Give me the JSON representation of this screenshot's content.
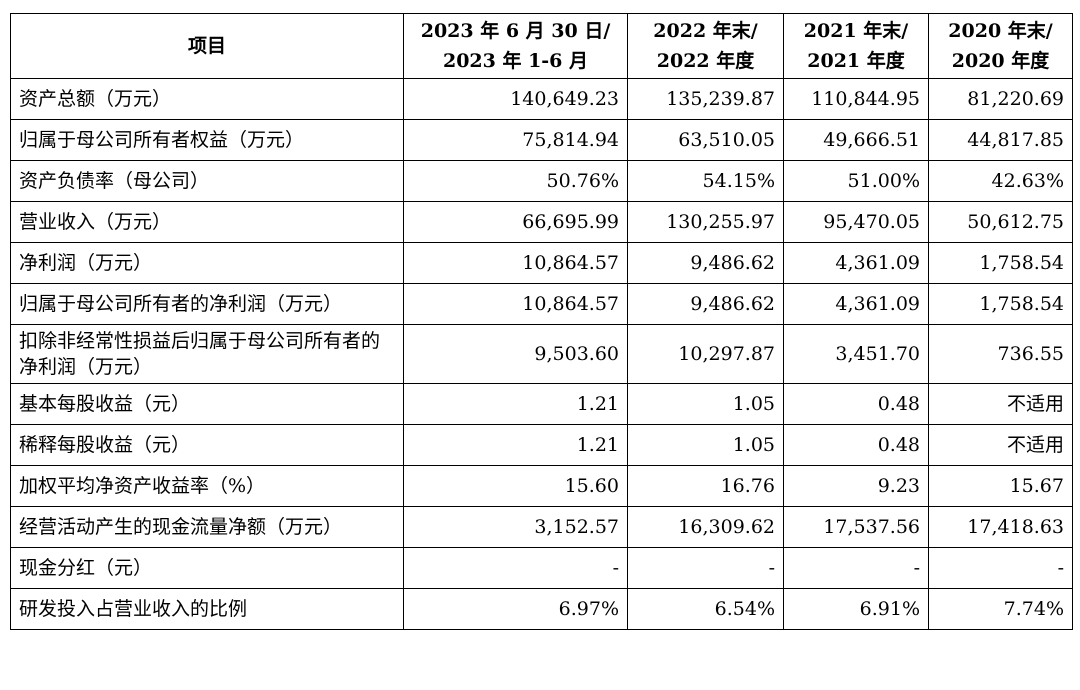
{
  "table": {
    "headers": [
      {
        "lines": [
          "项目"
        ]
      },
      {
        "lines": [
          "2023 年 6 月 30 日/",
          "2023 年 1-6 月"
        ]
      },
      {
        "lines": [
          "2022 年末/",
          "2022 年度"
        ]
      },
      {
        "lines": [
          "2021 年末/",
          "2021 年度"
        ]
      },
      {
        "lines": [
          "2020 年末/",
          "2020 年度"
        ]
      }
    ],
    "rows": [
      {
        "label": "资产总额（万元）",
        "values": [
          "140,649.23",
          "135,239.87",
          "110,844.95",
          "81,220.69"
        ]
      },
      {
        "label": "归属于母公司所有者权益（万元）",
        "values": [
          "75,814.94",
          "63,510.05",
          "49,666.51",
          "44,817.85"
        ]
      },
      {
        "label": "资产负债率（母公司）",
        "values": [
          "50.76%",
          "54.15%",
          "51.00%",
          "42.63%"
        ]
      },
      {
        "label": "营业收入（万元）",
        "values": [
          "66,695.99",
          "130,255.97",
          "95,470.05",
          "50,612.75"
        ]
      },
      {
        "label": "净利润（万元）",
        "values": [
          "10,864.57",
          "9,486.62",
          "4,361.09",
          "1,758.54"
        ]
      },
      {
        "label": "归属于母公司所有者的净利润（万元）",
        "values": [
          "10,864.57",
          "9,486.62",
          "4,361.09",
          "1,758.54"
        ]
      },
      {
        "label": "扣除非经常性损益后归属于母公司所有者的净利润（万元）",
        "values": [
          "9,503.60",
          "10,297.87",
          "3,451.70",
          "736.55"
        ]
      },
      {
        "label": "基本每股收益（元）",
        "values": [
          "1.21",
          "1.05",
          "0.48",
          "不适用"
        ]
      },
      {
        "label": "稀释每股收益（元）",
        "values": [
          "1.21",
          "1.05",
          "0.48",
          "不适用"
        ]
      },
      {
        "label": "加权平均净资产收益率（%）",
        "values": [
          "15.60",
          "16.76",
          "9.23",
          "15.67"
        ]
      },
      {
        "label": "经营活动产生的现金流量净额（万元）",
        "values": [
          "3,152.57",
          "16,309.62",
          "17,537.56",
          "17,418.63"
        ]
      },
      {
        "label": "现金分红（元）",
        "values": [
          "-",
          "-",
          "-",
          "-"
        ]
      },
      {
        "label": "研发投入占营业收入的比例",
        "values": [
          "6.97%",
          "6.54%",
          "6.91%",
          "7.74%"
        ]
      }
    ]
  }
}
